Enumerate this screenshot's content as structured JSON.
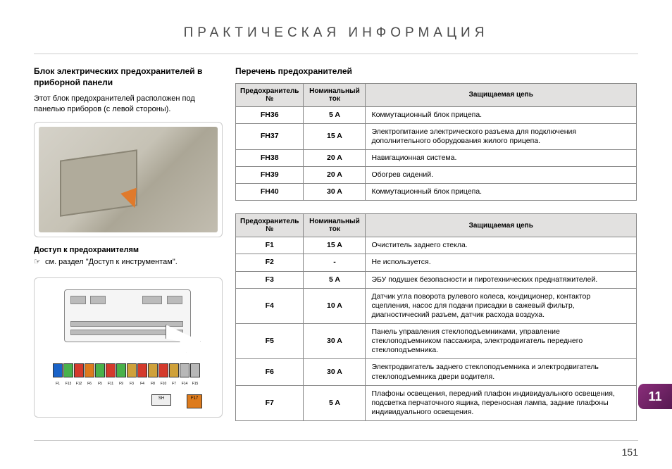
{
  "title": "ПРАКТИЧЕСКАЯ ИНФОРМАЦИЯ",
  "side_tab": "11",
  "page_number": "151",
  "left": {
    "heading": "Блок электрических предохранителей в приборной панели",
    "body": "Этот блок предохранителей расположен под панелью приборов (с левой стороны).",
    "sub_heading": "Доступ к предохранителям",
    "ref_symbol": "☞",
    "ref_text": "см. раздел \"Доступ к инструментам\".",
    "fuse_strip": {
      "labels": [
        "F1",
        "F13",
        "F12",
        "F6",
        "F5",
        "F11",
        "F9",
        "F3",
        "F4",
        "F8",
        "F10",
        "F7",
        "F14",
        "F15"
      ],
      "colors": [
        "#1a63c8",
        "#49b14a",
        "#d43a2c",
        "#dd7b1d",
        "#49b14a",
        "#d43a2c",
        "#49b14a",
        "#cfa13a",
        "#d43a2c",
        "#cfa13a",
        "#d43a2c",
        "#cfa13a",
        "#b7b7b7",
        "#b7b7b7"
      ]
    },
    "mini_boxes": {
      "sh": "SH",
      "f17": "F17",
      "f17_color": "#dd7b1d"
    }
  },
  "right": {
    "list_title": "Перечень предохранителей",
    "headers": {
      "num": "Предохранитель №",
      "amp": "Номинальный ток",
      "circuit": "Защищаемая цепь"
    },
    "table1": [
      {
        "num": "FH36",
        "amp": "5 A",
        "desc": "Коммутационный блок прицепа."
      },
      {
        "num": "FH37",
        "amp": "15 A",
        "desc": "Электропитание электрического разъема для подключения дополнительного оборудования жилого прицепа."
      },
      {
        "num": "FH38",
        "amp": "20 A",
        "desc": "Навигационная система."
      },
      {
        "num": "FH39",
        "amp": "20 A",
        "desc": "Обогрев сидений."
      },
      {
        "num": "FH40",
        "amp": "30 A",
        "desc": "Коммутационный блок прицепа."
      }
    ],
    "table2": [
      {
        "num": "F1",
        "amp": "15 A",
        "desc": "Очиститель заднего стекла."
      },
      {
        "num": "F2",
        "amp": "-",
        "desc": "Не используется."
      },
      {
        "num": "F3",
        "amp": "5 A",
        "desc": "ЭБУ подушек безопасности и пиротехнических преднатяжителей."
      },
      {
        "num": "F4",
        "amp": "10 A",
        "desc": "Датчик угла поворота рулевого колеса, кондиционер, контактор сцепления, насос для подачи присадки в сажевый фильтр, диагностический разъем, датчик расхода воздуха."
      },
      {
        "num": "F5",
        "amp": "30 A",
        "desc": "Панель управления стеклоподъемниками, управление стеклоподъемником пассажира, электродвигатель переднего стеклоподъемника."
      },
      {
        "num": "F6",
        "amp": "30 A",
        "desc": "Электродвигатель заднего стеклоподъемника и электродвигатель стеклоподъемника двери водителя."
      },
      {
        "num": "F7",
        "amp": "5 A",
        "desc": "Плафоны освещения, передний плафон индивидуального освещения, подсветка перчаточного ящика, переносная лампа, задние плафоны индивидуального освещения."
      }
    ]
  }
}
